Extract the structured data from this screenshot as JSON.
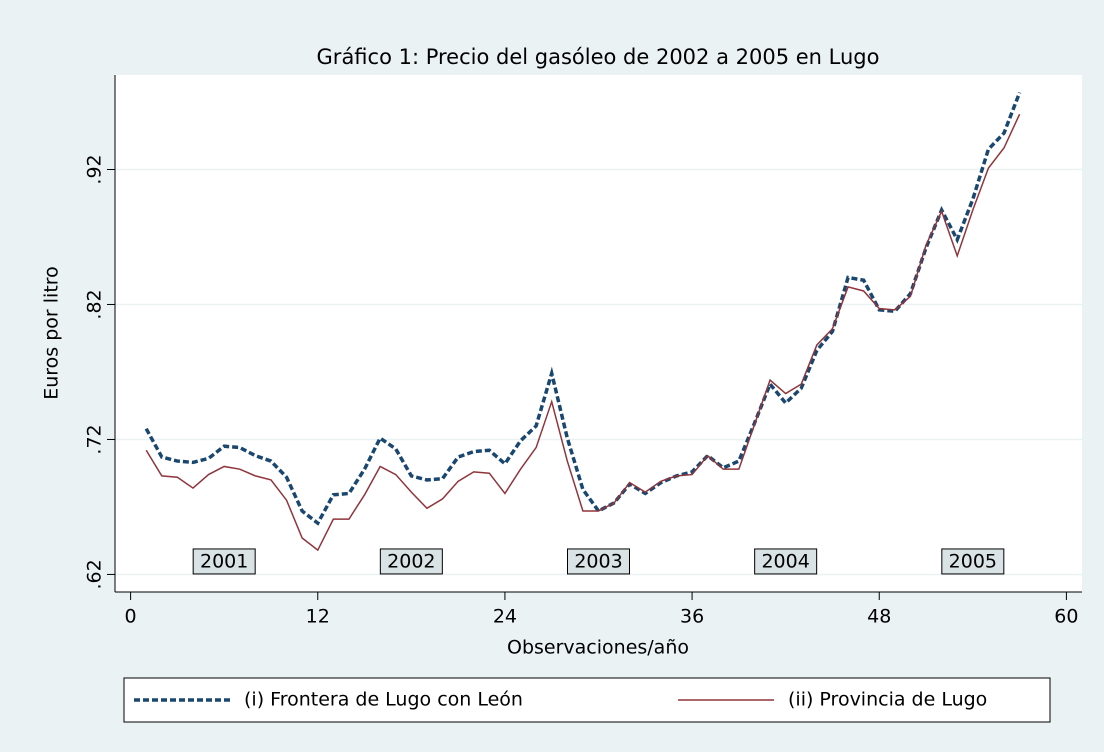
{
  "chart_data": {
    "type": "line",
    "title": "Gráfico 1: Precio del gasóleo de 2002 a 2005 en Lugo",
    "xlabel": "Observaciones/año",
    "ylabel": "Euros por litro",
    "x": [
      1,
      2,
      3,
      4,
      5,
      6,
      7,
      8,
      9,
      10,
      11,
      12,
      13,
      14,
      15,
      16,
      17,
      18,
      19,
      20,
      21,
      22,
      23,
      24,
      25,
      26,
      27,
      28,
      29,
      30,
      31,
      32,
      33,
      34,
      35,
      36,
      37,
      38,
      39,
      40,
      41,
      42,
      43,
      44,
      45,
      46,
      47,
      48,
      49,
      50,
      51,
      52,
      53,
      54,
      55,
      56,
      57
    ],
    "series": [
      {
        "name": "(i) Frontera de Lugo con León",
        "color": "#1a476f",
        "dashed": true,
        "values": [
          0.728,
          0.707,
          0.704,
          0.703,
          0.706,
          0.715,
          0.714,
          0.708,
          0.704,
          0.692,
          0.667,
          0.658,
          0.679,
          0.68,
          0.698,
          0.721,
          0.713,
          0.693,
          0.69,
          0.691,
          0.707,
          0.711,
          0.712,
          0.702,
          0.719,
          0.73,
          0.769,
          0.721,
          0.683,
          0.667,
          0.673,
          0.687,
          0.68,
          0.688,
          0.693,
          0.696,
          0.708,
          0.699,
          0.704,
          0.732,
          0.761,
          0.747,
          0.758,
          0.786,
          0.8,
          0.84,
          0.838,
          0.816,
          0.815,
          0.828,
          0.862,
          0.89,
          0.868,
          0.898,
          0.935,
          0.947,
          0.977
        ]
      },
      {
        "name": "(ii) Provincia de Lugo",
        "color": "#90353b",
        "dashed": false,
        "values": [
          0.712,
          0.693,
          0.692,
          0.684,
          0.694,
          0.7,
          0.698,
          0.693,
          0.69,
          0.675,
          0.647,
          0.638,
          0.661,
          0.661,
          0.679,
          0.7,
          0.694,
          0.681,
          0.669,
          0.676,
          0.689,
          0.696,
          0.695,
          0.68,
          0.698,
          0.714,
          0.748,
          0.704,
          0.667,
          0.667,
          0.673,
          0.688,
          0.681,
          0.689,
          0.693,
          0.694,
          0.708,
          0.698,
          0.698,
          0.731,
          0.764,
          0.754,
          0.761,
          0.79,
          0.802,
          0.833,
          0.83,
          0.817,
          0.816,
          0.826,
          0.864,
          0.889,
          0.856,
          0.89,
          0.921,
          0.936,
          0.961
        ]
      }
    ],
    "annotations": [
      {
        "text": "2001",
        "x": 6,
        "y": 0.63
      },
      {
        "text": "2002",
        "x": 18,
        "y": 0.63
      },
      {
        "text": "2003",
        "x": 30,
        "y": 0.63
      },
      {
        "text": "2004",
        "x": 42,
        "y": 0.63
      },
      {
        "text": "2005",
        "x": 54,
        "y": 0.63
      }
    ],
    "xlim": [
      -1,
      61
    ],
    "ylim": [
      0.607,
      0.99
    ],
    "xticks": [
      0,
      12,
      24,
      36,
      48,
      60
    ],
    "yticks": [
      {
        "value": 0.62,
        "label": ".62"
      },
      {
        "value": 0.72,
        "label": ".72"
      },
      {
        "value": 0.82,
        "label": ".82"
      },
      {
        "value": 0.92,
        "label": ".92"
      }
    ],
    "grid": true,
    "legend": "bottom"
  }
}
